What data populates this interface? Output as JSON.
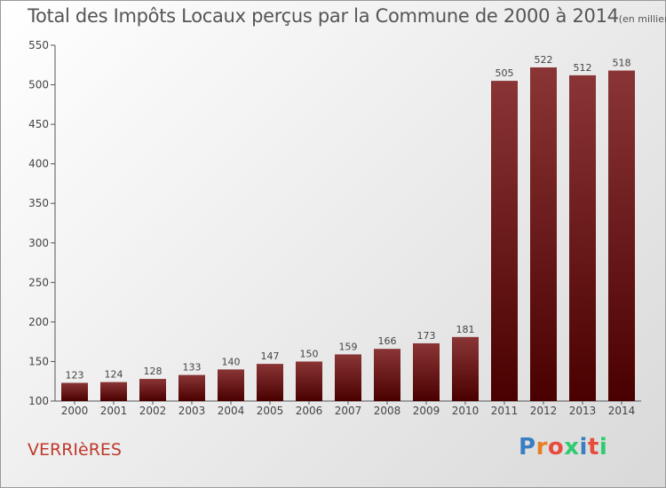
{
  "title": {
    "main": "Total des Impôts Locaux perçus par la Commune de 2000 à 2014",
    "unit": "(en milliers d'€)"
  },
  "commune": "VERRIèRES",
  "logo": {
    "text": "Proxiti",
    "colors": [
      "#3a7fc1",
      "#e67e22",
      "#e74c3c",
      "#2ecc71",
      "#3a7fc1",
      "#e74c3c",
      "#2ecc71"
    ]
  },
  "colors": {
    "bar_top": "#8a3535",
    "bar_bottom": "#4a0000",
    "commune": "#c0392b"
  },
  "chart_data": {
    "type": "bar",
    "categories": [
      "2000",
      "2001",
      "2002",
      "2003",
      "2004",
      "2005",
      "2006",
      "2007",
      "2008",
      "2009",
      "2010",
      "2011",
      "2012",
      "2013",
      "2014"
    ],
    "values": [
      123,
      124,
      128,
      133,
      140,
      147,
      150,
      159,
      166,
      173,
      181,
      505,
      522,
      512,
      518
    ],
    "ylim": [
      100,
      550
    ],
    "yticks": [
      100,
      150,
      200,
      250,
      300,
      350,
      400,
      450,
      500,
      550
    ],
    "xlabel": "",
    "ylabel": "",
    "grid": false
  }
}
